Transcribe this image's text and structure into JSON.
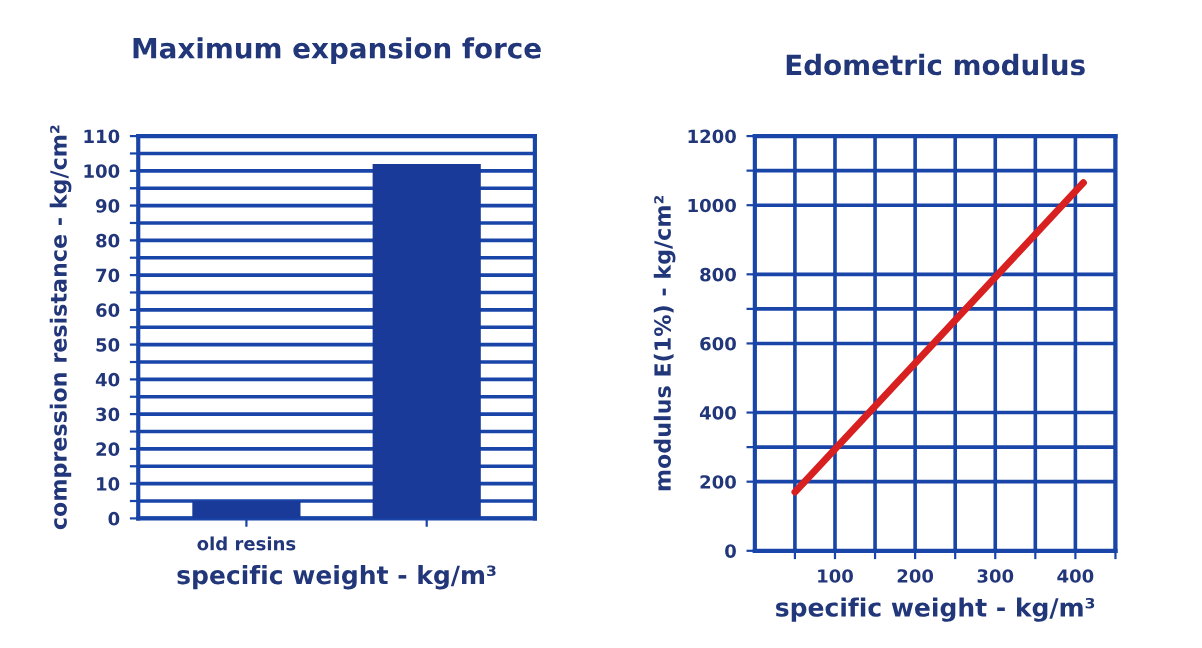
{
  "chart_data": [
    {
      "type": "bar",
      "title": "Maximum expansion force",
      "xlabel": "specific weight - kg/m³",
      "ylabel": "compression resistance - kg/cm²",
      "categories": [
        "old resins",
        null
      ],
      "values": [
        5,
        102
      ],
      "color": "#1a3a9a",
      "ylim": [
        0,
        110
      ],
      "yticks": [
        0,
        {
          "value": 5,
          "label": null
        },
        10,
        {
          "value": 15,
          "label": null
        },
        20,
        {
          "value": 25,
          "label": null
        },
        30,
        {
          "value": 35,
          "label": null
        },
        40,
        {
          "value": 45,
          "label": null
        },
        50,
        {
          "value": 55,
          "label": null
        },
        60,
        {
          "value": 65,
          "label": null
        },
        70,
        {
          "value": 75,
          "label": null
        },
        80,
        {
          "value": 85,
          "label": null
        },
        90,
        {
          "value": 95,
          "label": null
        },
        100,
        {
          "value": 105,
          "label": null
        },
        110
      ],
      "grid": "y"
    },
    {
      "type": "line",
      "title": "Edometric modulus",
      "xlabel": "specific weight - kg/m³",
      "ylabel": "modulus E(1%) - kg/cm²",
      "x": [
        50,
        410
      ],
      "values": [
        170,
        1065
      ],
      "color": "#d92020",
      "xlim": [
        0,
        450
      ],
      "xticks": [
        {
          "value": 50,
          "label": null
        },
        100,
        {
          "value": 150,
          "label": null
        },
        200,
        {
          "value": 250,
          "label": null
        },
        300,
        {
          "value": 350,
          "label": null
        },
        400,
        {
          "value": 450,
          "label": null
        }
      ],
      "ylim": [
        0,
        1200
      ],
      "yticks": [
        0,
        200,
        {
          "value": 300,
          "label": null
        },
        400,
        600,
        {
          "value": 700,
          "label": null
        },
        800,
        1000,
        {
          "value": 1100,
          "label": null
        },
        1200
      ],
      "grid": true
    }
  ]
}
